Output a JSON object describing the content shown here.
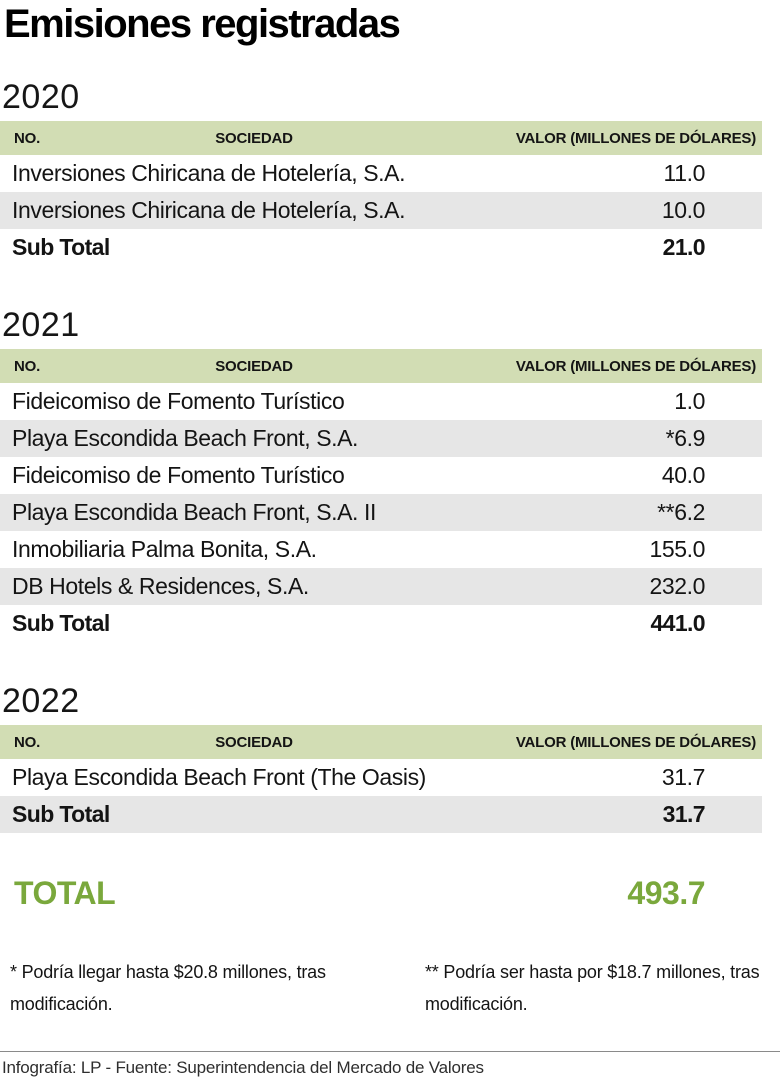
{
  "title": "Emisiones registradas",
  "colors": {
    "accent_green": "#7aa83c",
    "header_bg": "#d2ddb4",
    "row_alt_bg": "#e6e6e6"
  },
  "chart_data": {
    "type": "table",
    "title": "Emisiones registradas",
    "columns": [
      "NO.",
      "SOCIEDAD",
      "VALOR (MILLONES DE DÓLARES)"
    ],
    "sections": [
      {
        "year": "2020",
        "rows": [
          {
            "no": "",
            "sociedad": "Inversiones Chiricana de Hotelería, S.A.",
            "valor": 11.0,
            "valor_display": "11.0"
          },
          {
            "no": "",
            "sociedad": "Inversiones Chiricana de Hotelería, S.A.",
            "valor": 10.0,
            "valor_display": "10.0"
          }
        ],
        "subtotal_label": "Sub Total",
        "subtotal": 21.0,
        "subtotal_display": "21.0"
      },
      {
        "year": "2021",
        "rows": [
          {
            "no": "",
            "sociedad": "Fideicomiso de Fomento Turístico",
            "valor": 1.0,
            "valor_display": "1.0"
          },
          {
            "no": "",
            "sociedad": "Playa Escondida Beach Front, S.A.",
            "valor": 6.9,
            "valor_display": "*6.9"
          },
          {
            "no": "",
            "sociedad": "Fideicomiso de Fomento Turístico",
            "valor": 40.0,
            "valor_display": "40.0"
          },
          {
            "no": "",
            "sociedad": "Playa Escondida Beach Front, S.A. II",
            "valor": 6.2,
            "valor_display": "**6.2"
          },
          {
            "no": "",
            "sociedad": "Inmobiliaria Palma Bonita, S.A.",
            "valor": 155.0,
            "valor_display": "155.0"
          },
          {
            "no": "",
            "sociedad": "DB Hotels & Residences, S.A.",
            "valor": 232.0,
            "valor_display": "232.0"
          }
        ],
        "subtotal_label": "Sub Total",
        "subtotal": 441.0,
        "subtotal_display": "441.0"
      },
      {
        "year": "2022",
        "rows": [
          {
            "no": "",
            "sociedad": "Playa Escondida Beach Front (The Oasis)",
            "valor": 31.7,
            "valor_display": "31.7"
          }
        ],
        "subtotal_label": "Sub Total",
        "subtotal": 31.7,
        "subtotal_display": "31.7"
      }
    ],
    "total_label": "TOTAL",
    "total": 493.7,
    "total_display": "493.7"
  },
  "footnotes": [
    "* Podría llegar hasta $20.8 millones, tras modificación.",
    "** Podría ser hasta por $18.7 millones, tras modificación."
  ],
  "footer": "Infografía: LP - Fuente: Superintendencia del Mercado de Valores"
}
